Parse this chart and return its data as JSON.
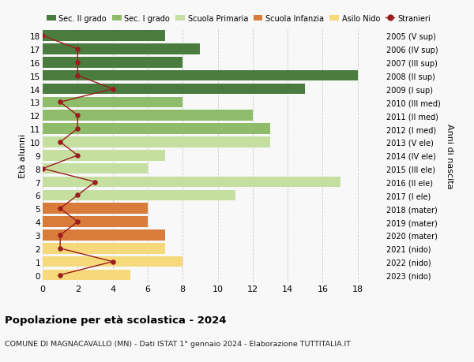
{
  "ages": [
    18,
    17,
    16,
    15,
    14,
    13,
    12,
    11,
    10,
    9,
    8,
    7,
    6,
    5,
    4,
    3,
    2,
    1,
    0
  ],
  "anni_nascita": [
    "2005 (V sup)",
    "2006 (IV sup)",
    "2007 (III sup)",
    "2008 (II sup)",
    "2009 (I sup)",
    "2010 (III med)",
    "2011 (II med)",
    "2012 (I med)",
    "2013 (V ele)",
    "2014 (IV ele)",
    "2015 (III ele)",
    "2016 (II ele)",
    "2017 (I ele)",
    "2018 (mater)",
    "2019 (mater)",
    "2020 (mater)",
    "2021 (nido)",
    "2022 (nido)",
    "2023 (nido)"
  ],
  "bar_values": [
    7,
    9,
    8,
    18,
    15,
    8,
    12,
    13,
    13,
    7,
    6,
    17,
    11,
    6,
    6,
    7,
    7,
    8,
    5
  ],
  "stranieri": [
    0,
    2,
    2,
    2,
    4,
    1,
    2,
    2,
    1,
    2,
    0,
    3,
    2,
    1,
    2,
    1,
    1,
    4,
    1
  ],
  "bar_colors": [
    "#4a7c3f",
    "#4a7c3f",
    "#4a7c3f",
    "#4a7c3f",
    "#4a7c3f",
    "#8fbc6a",
    "#8fbc6a",
    "#8fbc6a",
    "#c5dfa0",
    "#c5dfa0",
    "#c5dfa0",
    "#c5dfa0",
    "#c5dfa0",
    "#d97b3a",
    "#d97b3a",
    "#d97b3a",
    "#f5d97a",
    "#f5d97a",
    "#f5d97a"
  ],
  "legend_labels": [
    "Sec. II grado",
    "Sec. I grado",
    "Scuola Primaria",
    "Scuola Infanzia",
    "Asilo Nido",
    "Stranieri"
  ],
  "legend_colors": [
    "#4a7c3f",
    "#8fbc6a",
    "#c5dfa0",
    "#d97b3a",
    "#f5d97a",
    "#9b1c1c"
  ],
  "stranieri_color": "#9b1c1c",
  "title": "Popolazione per età scolastica - 2024",
  "subtitle": "COMUNE DI MAGNACAVALLO (MN) - Dati ISTAT 1° gennaio 2024 - Elaborazione TUTTITALIA.IT",
  "ylabel": "Età alunni",
  "ylabel2": "Anni di nascita",
  "xlabel_vals": [
    0,
    2,
    4,
    6,
    8,
    10,
    12,
    14,
    16,
    18
  ],
  "xlim": [
    0,
    19.5
  ],
  "ylim_min": -0.55,
  "ylim_max": 18.55,
  "background_color": "#f8f8f8",
  "grid_color": "#cccccc",
  "bar_height": 0.8
}
